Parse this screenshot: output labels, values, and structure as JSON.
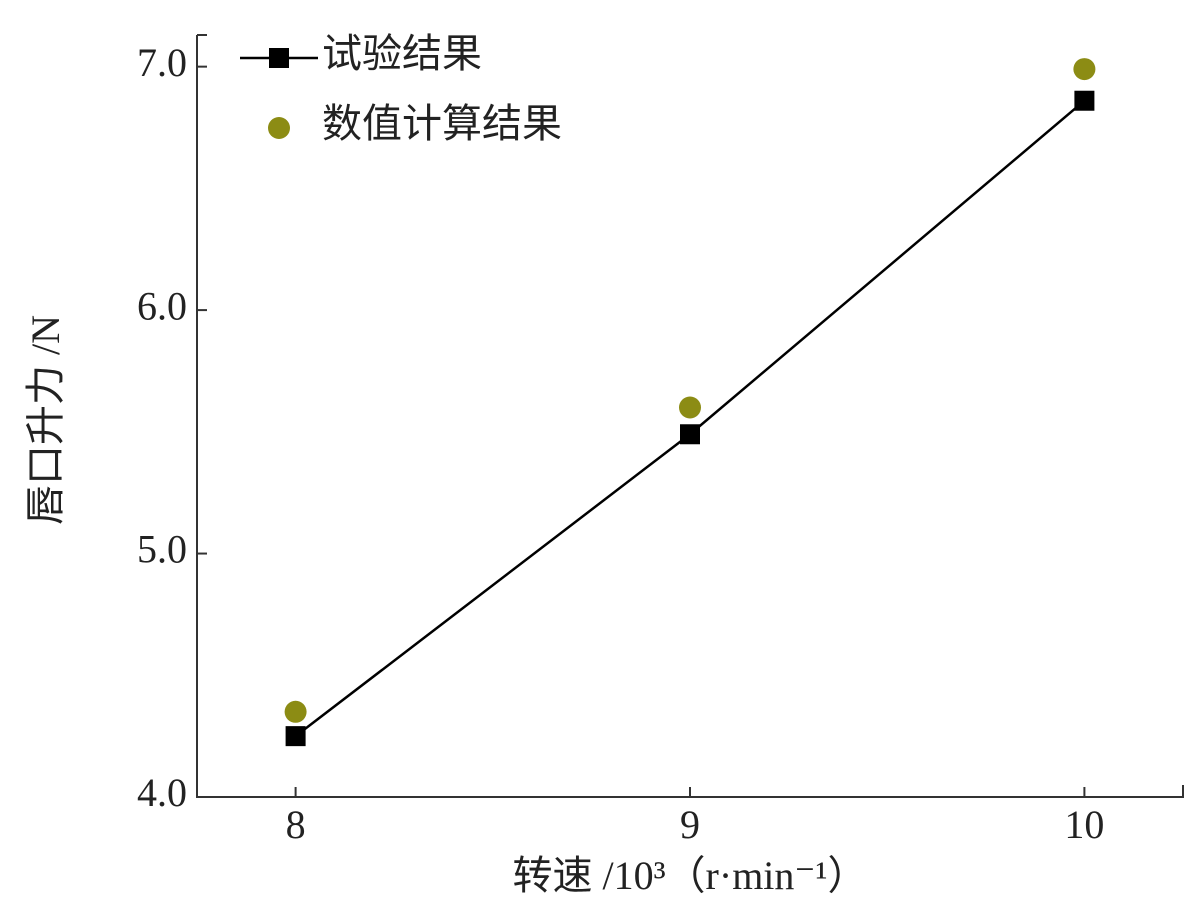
{
  "chart_data": {
    "type": "line",
    "x_label": "转速 /10³（r·min⁻¹）",
    "y_label": "唇口升力 /N",
    "x": [
      8,
      9,
      10
    ],
    "series": [
      {
        "name": "试验结果",
        "color": "#000000",
        "type": "line",
        "values": [
          4.25,
          5.49,
          6.86
        ]
      },
      {
        "name": "数值计算结果",
        "color": "#8c8c14",
        "type": "scatter",
        "values": [
          4.35,
          5.6,
          6.99
        ]
      }
    ],
    "xlim": [
      7.75,
      10.25
    ],
    "xticks": [
      8,
      9,
      10
    ],
    "ylim": [
      4.0,
      7.13
    ],
    "yticks": [
      {
        "value": 4,
        "label": "4.0"
      },
      {
        "value": 5,
        "label": "5.0"
      },
      {
        "value": 6,
        "label": "6.0"
      },
      {
        "value": 7,
        "label": "7.0"
      }
    ],
    "legend": "upper left"
  }
}
